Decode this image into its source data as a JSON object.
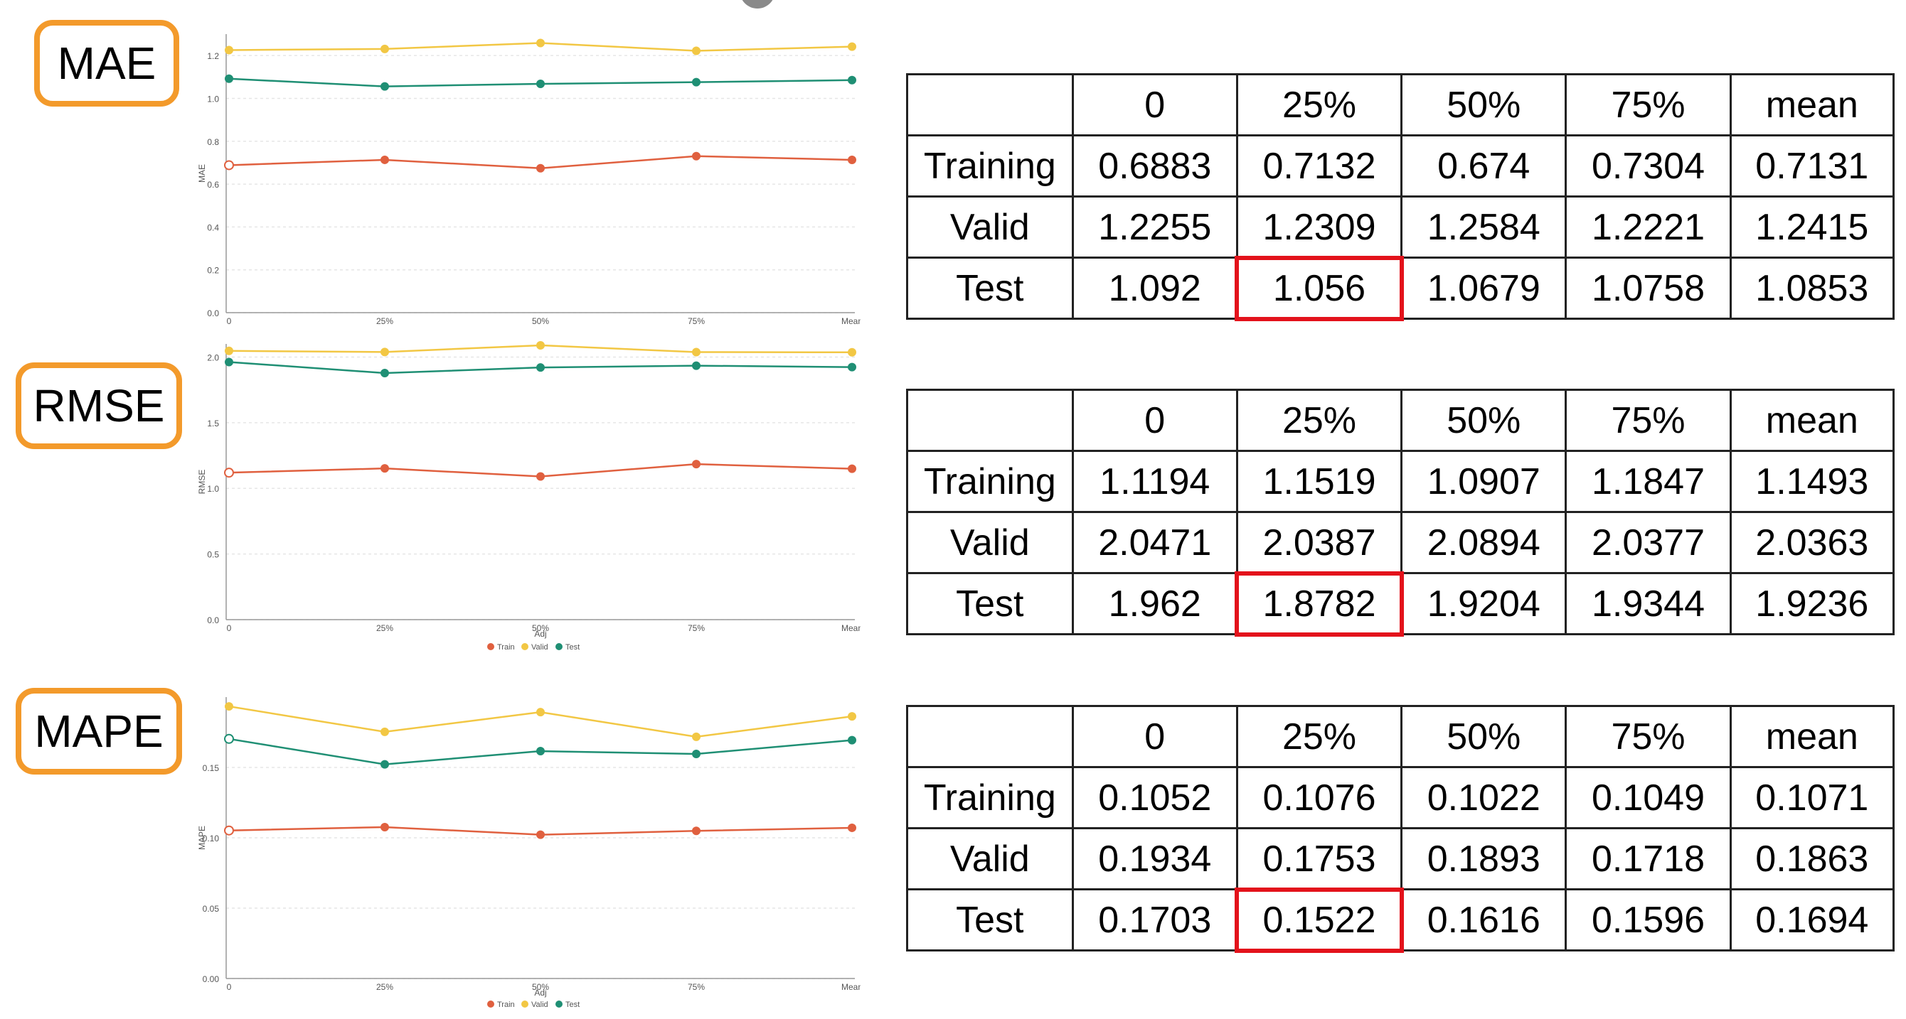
{
  "metrics": [
    {
      "id": "mae",
      "label": "MAE",
      "table": {
        "header": [
          "",
          "0",
          "25%",
          "50%",
          "75%",
          "mean"
        ],
        "rows": [
          [
            "Training",
            "0.6883",
            "0.7132",
            "0.674",
            "0.7304",
            "0.7131"
          ],
          [
            "Valid",
            "1.2255",
            "1.2309",
            "1.2584",
            "1.2221",
            "1.2415"
          ],
          [
            "Test",
            "1.092",
            "1.056",
            "1.0679",
            "1.0758",
            "1.0853"
          ]
        ],
        "highlight": {
          "row": 3,
          "col": 2
        }
      }
    },
    {
      "id": "rmse",
      "label": "RMSE",
      "table": {
        "header": [
          "",
          "0",
          "25%",
          "50%",
          "75%",
          "mean"
        ],
        "rows": [
          [
            "Training",
            "1.1194",
            "1.1519",
            "1.0907",
            "1.1847",
            "1.1493"
          ],
          [
            "Valid",
            "2.0471",
            "2.0387",
            "2.0894",
            "2.0377",
            "2.0363"
          ],
          [
            "Test",
            "1.962",
            "1.8782",
            "1.9204",
            "1.9344",
            "1.9236"
          ]
        ],
        "highlight": {
          "row": 3,
          "col": 2
        }
      }
    },
    {
      "id": "mape",
      "label": "MAPE",
      "table": {
        "header": [
          "",
          "0",
          "25%",
          "50%",
          "75%",
          "mean"
        ],
        "rows": [
          [
            "Training",
            "0.1052",
            "0.1076",
            "0.1022",
            "0.1049",
            "0.1071"
          ],
          [
            "Valid",
            "0.1934",
            "0.1753",
            "0.1893",
            "0.1718",
            "0.1863"
          ],
          [
            "Test",
            "0.1703",
            "0.1522",
            "0.1616",
            "0.1596",
            "0.1694"
          ]
        ],
        "highlight": {
          "row": 3,
          "col": 2
        }
      }
    }
  ],
  "colors": {
    "train": "#e0603f",
    "valid": "#f2c744",
    "test": "#1f8f74",
    "highlight": "#e3121b",
    "label_border": "#f39a2b"
  },
  "chart_data": [
    {
      "type": "line",
      "x": [
        "0",
        "25%",
        "50%",
        "75%",
        "Mean"
      ],
      "xlabel": "",
      "ylabel": "MAE",
      "ylim": [
        0,
        1.3
      ],
      "yticks": [
        "0.0",
        "0.2",
        "0.4",
        "0.6",
        "0.8",
        "1.0",
        "1.2"
      ],
      "ytick_values": [
        0,
        0.2,
        0.4,
        0.6,
        0.8,
        1.0,
        1.2
      ],
      "grid": true,
      "legend": [],
      "series": [
        {
          "key": "train",
          "values": [
            0.6883,
            0.7132,
            0.674,
            0.7304,
            0.7131
          ]
        },
        {
          "key": "valid",
          "values": [
            1.2255,
            1.2309,
            1.2584,
            1.2221,
            1.2415
          ]
        },
        {
          "key": "test",
          "values": [
            1.092,
            1.056,
            1.0679,
            1.0758,
            1.0853
          ]
        }
      ]
    },
    {
      "type": "line",
      "x": [
        "0",
        "25%",
        "50%",
        "75%",
        "Mean"
      ],
      "xlabel": "Adj",
      "ylabel": "RMSE",
      "ylim": [
        0,
        2.1
      ],
      "yticks": [
        "0.0",
        "0.5",
        "1.0",
        "1.5",
        "2.0"
      ],
      "ytick_values": [
        0,
        0.5,
        1.0,
        1.5,
        2.0
      ],
      "grid": true,
      "legend": [
        "Train",
        "Valid",
        "Test"
      ],
      "series": [
        {
          "key": "train",
          "values": [
            1.1194,
            1.1519,
            1.0907,
            1.1847,
            1.1493
          ]
        },
        {
          "key": "valid",
          "values": [
            2.0471,
            2.0387,
            2.0894,
            2.0377,
            2.0363
          ]
        },
        {
          "key": "test",
          "values": [
            1.962,
            1.8782,
            1.9204,
            1.9344,
            1.9236
          ]
        }
      ]
    },
    {
      "type": "line",
      "x": [
        "0",
        "25%",
        "50%",
        "75%",
        "Mean"
      ],
      "xlabel": "Adj",
      "ylabel": "MAPE",
      "ylim": [
        0,
        0.2
      ],
      "yticks": [
        "0.00",
        "0.05",
        "0.10",
        "0.15"
      ],
      "ytick_values": [
        0,
        0.05,
        0.1,
        0.15
      ],
      "grid": true,
      "legend": [
        "Train",
        "Valid",
        "Test"
      ],
      "series": [
        {
          "key": "train",
          "values": [
            0.1052,
            0.1076,
            0.1022,
            0.1049,
            0.1071
          ]
        },
        {
          "key": "valid",
          "values": [
            0.1934,
            0.1753,
            0.1893,
            0.1718,
            0.1863
          ]
        },
        {
          "key": "test",
          "values": [
            0.1703,
            0.1522,
            0.1616,
            0.1596,
            0.1694
          ]
        }
      ]
    }
  ]
}
